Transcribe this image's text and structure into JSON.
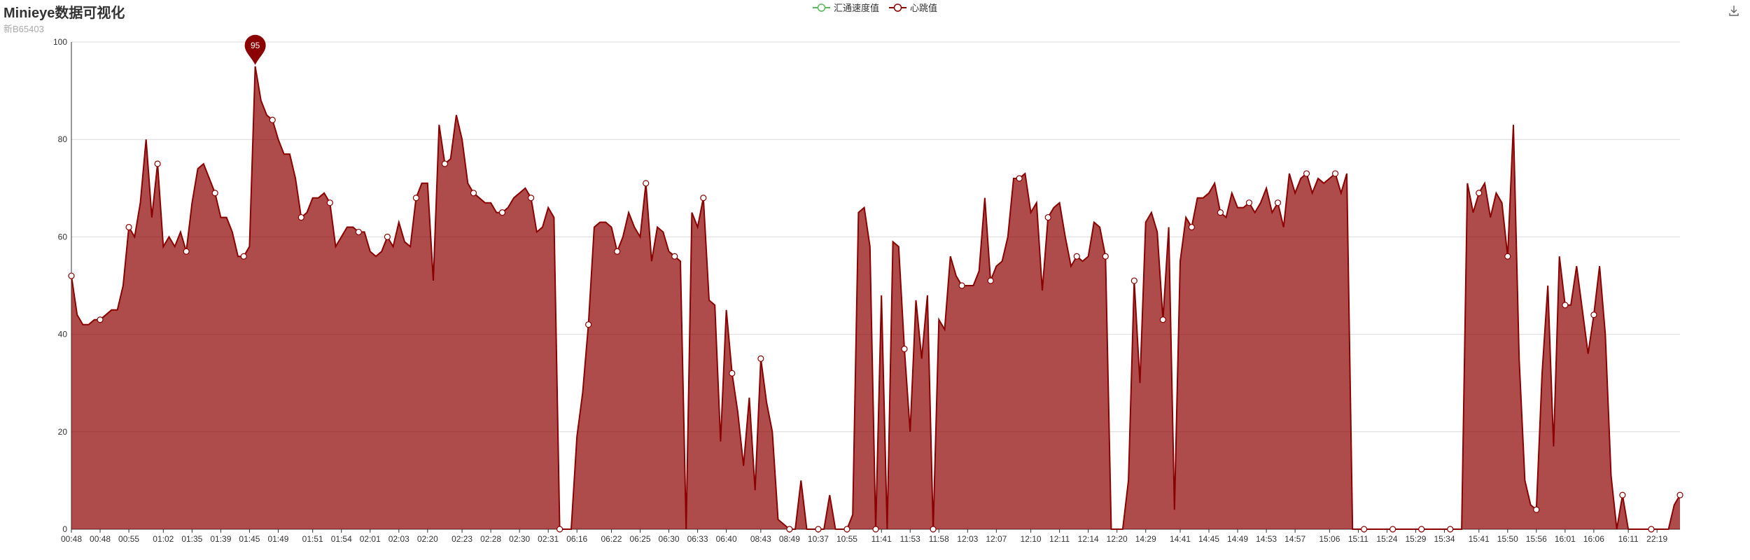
{
  "page": {
    "title": "Minieye数据可视化",
    "subtitle": "新B65403"
  },
  "legend": [
    {
      "name": "汇通速度值",
      "color": "#5ab95a"
    },
    {
      "name": "心跳值",
      "color": "#8b0000"
    }
  ],
  "toolbox": {
    "icon": "download-icon"
  },
  "chart_data": {
    "type": "area",
    "ylim": [
      0,
      100
    ],
    "y_ticks": [
      0,
      20,
      40,
      60,
      80,
      100
    ],
    "grid": true,
    "legend_position": "top-center",
    "x_tick_labels": [
      "00:48",
      "00:48",
      "00:55",
      "01:02",
      "01:35",
      "01:39",
      "01:45",
      "01:49",
      "01:51",
      "01:54",
      "02:01",
      "02:03",
      "02:20",
      "02:23",
      "02:28",
      "02:30",
      "02:31",
      "06:16",
      "06:22",
      "06:25",
      "06:30",
      "06:33",
      "06:40",
      "08:43",
      "08:49",
      "10:37",
      "10:55",
      "11:41",
      "11:53",
      "11:58",
      "12:03",
      "12:07",
      "12:10",
      "12:11",
      "12:14",
      "12:20",
      "14:29",
      "14:41",
      "14:45",
      "14:49",
      "14:53",
      "14:57",
      "15:06",
      "15:11",
      "15:24",
      "15:29",
      "15:34",
      "15:41",
      "15:50",
      "15:56",
      "16:01",
      "16:06",
      "16:11",
      "22:19"
    ],
    "max_marker": {
      "label": "95",
      "value": 95
    },
    "series": [
      {
        "name": "汇通速度值",
        "color": "#5ab95a",
        "values": []
      },
      {
        "name": "心跳值",
        "color": "#8b0000",
        "values": [
          52,
          44,
          42,
          42,
          43,
          43,
          44,
          45,
          45,
          50,
          62,
          60,
          67,
          80,
          64,
          75,
          58,
          60,
          58,
          61,
          57,
          67,
          74,
          75,
          72,
          69,
          64,
          64,
          61,
          56,
          56,
          58,
          95,
          88,
          85,
          84,
          80,
          77,
          77,
          72,
          64,
          65,
          68,
          68,
          69,
          67,
          58,
          60,
          62,
          62,
          61,
          61,
          57,
          56,
          57,
          60,
          58,
          63,
          59,
          58,
          68,
          71,
          71,
          51,
          83,
          75,
          76,
          85,
          80,
          71,
          69,
          68,
          67,
          67,
          65,
          65,
          66,
          68,
          69,
          70,
          68,
          61,
          62,
          66,
          64,
          0,
          0,
          0,
          19,
          28,
          42,
          62,
          63,
          63,
          62,
          57,
          60,
          65,
          62,
          60,
          71,
          55,
          62,
          61,
          57,
          56,
          55,
          0,
          65,
          62,
          68,
          47,
          46,
          18,
          45,
          32,
          24,
          13,
          27,
          8,
          35,
          26,
          20,
          2,
          1,
          0,
          0,
          10,
          0,
          0,
          0,
          0,
          7,
          0,
          0,
          0,
          3,
          65,
          66,
          58,
          0,
          48,
          0,
          59,
          58,
          37,
          20,
          47,
          35,
          48,
          0,
          43,
          41,
          56,
          52,
          50,
          50,
          50,
          53,
          68,
          51,
          54,
          55,
          60,
          72,
          72,
          73,
          65,
          67,
          49,
          64,
          66,
          67,
          60,
          54,
          56,
          55,
          56,
          63,
          62,
          56,
          0,
          0,
          0,
          10,
          51,
          30,
          63,
          65,
          61,
          43,
          62,
          4,
          55,
          64,
          62,
          68,
          68,
          69,
          71,
          65,
          64,
          69,
          66,
          66,
          67,
          65,
          67,
          70,
          65,
          67,
          62,
          73,
          69,
          72,
          73,
          69,
          72,
          71,
          72,
          73,
          69,
          73,
          0,
          0,
          0,
          0,
          0,
          0,
          0,
          0,
          0,
          0,
          0,
          0,
          0,
          0,
          0,
          0,
          0,
          0,
          0,
          0,
          71,
          65,
          69,
          71,
          64,
          69,
          67,
          56,
          83,
          35,
          10,
          5,
          4,
          32,
          50,
          17,
          56,
          46,
          46,
          54,
          45,
          36,
          44,
          54,
          40,
          11,
          0,
          7,
          0,
          0,
          0,
          0,
          0,
          0,
          0,
          0,
          5,
          7
        ]
      },
      {
        "name": "心跳值",
        "role": "markers",
        "values": []
      }
    ]
  }
}
